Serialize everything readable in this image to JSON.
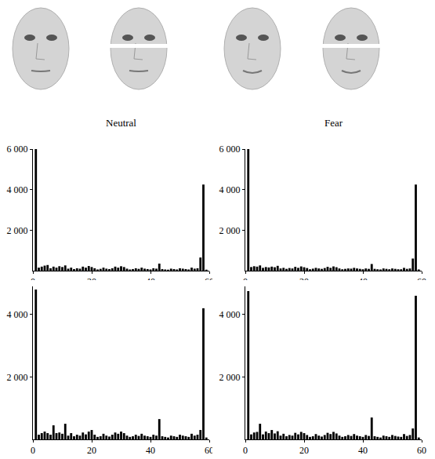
{
  "chart_data": [
    {
      "type": "bar",
      "title": "Neutral",
      "color": "#000000",
      "x": [
        1,
        2,
        3,
        4,
        5,
        6,
        7,
        8,
        9,
        10,
        11,
        12,
        13,
        14,
        15,
        16,
        17,
        18,
        19,
        20,
        21,
        22,
        23,
        24,
        25,
        26,
        27,
        28,
        29,
        30,
        31,
        32,
        33,
        34,
        35,
        36,
        37,
        38,
        39,
        40,
        41,
        42,
        43,
        44,
        45,
        46,
        47,
        48,
        49,
        50,
        51,
        52,
        53,
        54,
        55,
        56,
        57,
        58,
        59
      ],
      "values": [
        6000,
        150,
        200,
        250,
        280,
        120,
        200,
        150,
        220,
        180,
        260,
        100,
        150,
        80,
        120,
        100,
        200,
        150,
        230,
        180,
        120,
        60,
        90,
        150,
        100,
        80,
        120,
        200,
        150,
        220,
        180,
        100,
        60,
        80,
        120,
        90,
        150,
        100,
        80,
        60,
        120,
        100,
        350,
        80,
        60,
        50,
        100,
        80,
        60,
        120,
        100,
        80,
        60,
        150,
        100,
        120,
        650,
        4250,
        50
      ],
      "xlim": [
        0,
        60
      ],
      "xticks": [
        0,
        20,
        40,
        60
      ],
      "ylim": [
        0,
        6000
      ],
      "yticks": [
        {
          "value": 2000,
          "label": "2 000"
        },
        {
          "value": 4000,
          "label": "4 000"
        },
        {
          "value": 6000,
          "label": "6 000"
        }
      ],
      "grid": false
    },
    {
      "type": "bar",
      "title": "Fear",
      "color": "#000000",
      "x": [
        1,
        2,
        3,
        4,
        5,
        6,
        7,
        8,
        9,
        10,
        11,
        12,
        13,
        14,
        15,
        16,
        17,
        18,
        19,
        20,
        21,
        22,
        23,
        24,
        25,
        26,
        27,
        28,
        29,
        30,
        31,
        32,
        33,
        34,
        35,
        36,
        37,
        38,
        39,
        40,
        41,
        42,
        43,
        44,
        45,
        46,
        47,
        48,
        49,
        50,
        51,
        52,
        53,
        54,
        55,
        56,
        57,
        58,
        59
      ],
      "values": [
        6000,
        180,
        220,
        200,
        260,
        140,
        180,
        160,
        200,
        170,
        240,
        110,
        140,
        90,
        130,
        110,
        190,
        140,
        210,
        170,
        130,
        70,
        100,
        140,
        110,
        90,
        130,
        190,
        140,
        210,
        170,
        110,
        70,
        90,
        110,
        100,
        140,
        110,
        90,
        70,
        110,
        90,
        330,
        90,
        70,
        60,
        110,
        90,
        70,
        110,
        90,
        70,
        70,
        140,
        90,
        110,
        600,
        4250,
        60
      ],
      "xlim": [
        0,
        60
      ],
      "xticks": [
        0,
        20,
        40,
        60
      ],
      "ylim": [
        0,
        6000
      ],
      "yticks": [
        {
          "value": 2000,
          "label": "2 000"
        },
        {
          "value": 4000,
          "label": "4 000"
        },
        {
          "value": 6000,
          "label": "6 000"
        }
      ],
      "grid": false
    },
    {
      "type": "bar",
      "color": "#000000",
      "x": [
        1,
        2,
        3,
        4,
        5,
        6,
        7,
        8,
        9,
        10,
        11,
        12,
        13,
        14,
        15,
        16,
        17,
        18,
        19,
        20,
        21,
        22,
        23,
        24,
        25,
        26,
        27,
        28,
        29,
        30,
        31,
        32,
        33,
        34,
        35,
        36,
        37,
        38,
        39,
        40,
        41,
        42,
        43,
        44,
        45,
        46,
        47,
        48,
        49,
        50,
        51,
        52,
        53,
        54,
        55,
        56,
        57,
        58,
        59
      ],
      "values": [
        4800,
        150,
        200,
        250,
        200,
        150,
        450,
        200,
        220,
        180,
        500,
        120,
        200,
        100,
        150,
        120,
        220,
        160,
        250,
        300,
        150,
        80,
        100,
        180,
        120,
        90,
        150,
        220,
        180,
        250,
        200,
        120,
        80,
        100,
        150,
        110,
        180,
        120,
        100,
        80,
        150,
        120,
        650,
        100,
        80,
        60,
        120,
        100,
        80,
        150,
        120,
        100,
        80,
        180,
        120,
        150,
        300,
        4200,
        60
      ],
      "xlim": [
        0,
        60
      ],
      "xticks": [
        0,
        20,
        40,
        60
      ],
      "ylim": [
        0,
        4900
      ],
      "yticks": [
        {
          "value": 2000,
          "label": "2 000"
        },
        {
          "value": 4000,
          "label": "4 000"
        }
      ],
      "grid": false
    },
    {
      "type": "bar",
      "color": "#000000",
      "x": [
        1,
        2,
        3,
        4,
        5,
        6,
        7,
        8,
        9,
        10,
        11,
        12,
        13,
        14,
        15,
        16,
        17,
        18,
        19,
        20,
        21,
        22,
        23,
        24,
        25,
        26,
        27,
        28,
        29,
        30,
        31,
        32,
        33,
        34,
        35,
        36,
        37,
        38,
        39,
        40,
        41,
        42,
        43,
        44,
        45,
        46,
        47,
        48,
        49,
        50,
        51,
        52,
        53,
        54,
        55,
        56,
        57,
        58,
        59
      ],
      "values": [
        4750,
        160,
        220,
        240,
        500,
        160,
        250,
        200,
        300,
        190,
        260,
        120,
        180,
        100,
        140,
        120,
        210,
        160,
        240,
        200,
        140,
        80,
        100,
        170,
        120,
        90,
        140,
        210,
        170,
        240,
        190,
        120,
        80,
        100,
        140,
        110,
        170,
        120,
        100,
        80,
        140,
        110,
        700,
        100,
        80,
        60,
        120,
        100,
        80,
        140,
        110,
        90,
        80,
        170,
        110,
        140,
        350,
        4600,
        60
      ],
      "xlim": [
        0,
        60
      ],
      "xticks": [
        0,
        20,
        40,
        60
      ],
      "ylim": [
        0,
        4900
      ],
      "yticks": [
        {
          "value": 2000,
          "label": "2 000"
        },
        {
          "value": 4000,
          "label": "4 000"
        }
      ],
      "grid": false
    }
  ]
}
